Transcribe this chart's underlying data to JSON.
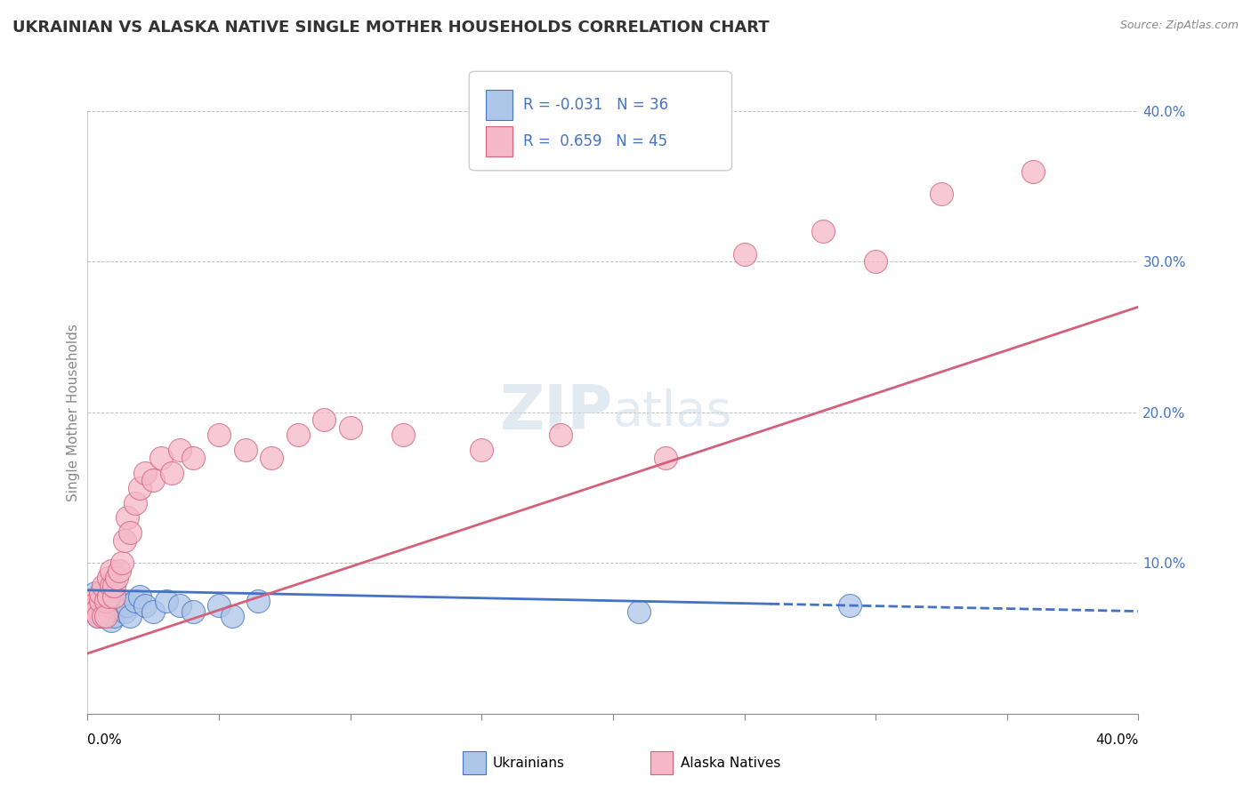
{
  "title": "UKRAINIAN VS ALASKA NATIVE SINGLE MOTHER HOUSEHOLDS CORRELATION CHART",
  "source": "Source: ZipAtlas.com",
  "ylabel": "Single Mother Households",
  "ukrainians_color": "#aec6e8",
  "alaska_color": "#f4b8c8",
  "trend_ukrainian_color": "#4472c4",
  "trend_alaska_color": "#d4607a",
  "watermark_zip": "ZIP",
  "watermark_atlas": "atlas",
  "xlim": [
    0.0,
    0.4
  ],
  "ylim": [
    0.0,
    0.4
  ],
  "ytick_vals": [
    0.0,
    0.1,
    0.2,
    0.3,
    0.4
  ],
  "ytick_labels": [
    "",
    "10.0%",
    "20.0%",
    "30.0%",
    "40.0%"
  ],
  "legend_r1": "R = -0.031",
  "legend_n1": "N = 36",
  "legend_r2": "R =  0.659",
  "legend_n2": "N = 45",
  "ukrainians_x": [
    0.001,
    0.002,
    0.003,
    0.004,
    0.004,
    0.005,
    0.005,
    0.006,
    0.006,
    0.006,
    0.007,
    0.007,
    0.008,
    0.008,
    0.009,
    0.009,
    0.01,
    0.01,
    0.011,
    0.012,
    0.013,
    0.014,
    0.015,
    0.016,
    0.018,
    0.02,
    0.022,
    0.025,
    0.03,
    0.035,
    0.04,
    0.05,
    0.055,
    0.065,
    0.21,
    0.29
  ],
  "ukrainians_y": [
    0.075,
    0.072,
    0.08,
    0.065,
    0.07,
    0.078,
    0.068,
    0.07,
    0.065,
    0.075,
    0.08,
    0.065,
    0.072,
    0.068,
    0.075,
    0.062,
    0.078,
    0.065,
    0.07,
    0.072,
    0.075,
    0.068,
    0.072,
    0.065,
    0.075,
    0.078,
    0.072,
    0.068,
    0.075,
    0.072,
    0.068,
    0.072,
    0.065,
    0.075,
    0.068,
    0.072
  ],
  "alaska_x": [
    0.001,
    0.002,
    0.003,
    0.004,
    0.005,
    0.005,
    0.006,
    0.006,
    0.007,
    0.007,
    0.008,
    0.008,
    0.009,
    0.009,
    0.01,
    0.01,
    0.011,
    0.012,
    0.013,
    0.014,
    0.015,
    0.016,
    0.018,
    0.02,
    0.022,
    0.025,
    0.028,
    0.032,
    0.035,
    0.04,
    0.05,
    0.06,
    0.07,
    0.08,
    0.09,
    0.1,
    0.12,
    0.15,
    0.18,
    0.22,
    0.25,
    0.28,
    0.3,
    0.325,
    0.36
  ],
  "alaska_y": [
    0.075,
    0.072,
    0.068,
    0.065,
    0.075,
    0.08,
    0.065,
    0.085,
    0.075,
    0.065,
    0.078,
    0.09,
    0.085,
    0.095,
    0.078,
    0.085,
    0.09,
    0.095,
    0.1,
    0.115,
    0.13,
    0.12,
    0.14,
    0.15,
    0.16,
    0.155,
    0.17,
    0.16,
    0.175,
    0.17,
    0.185,
    0.175,
    0.17,
    0.185,
    0.195,
    0.19,
    0.185,
    0.175,
    0.185,
    0.17,
    0.305,
    0.32,
    0.3,
    0.345,
    0.36
  ],
  "trend_u_x0": 0.0,
  "trend_u_x1": 0.4,
  "trend_u_y0": 0.082,
  "trend_u_y1": 0.068,
  "trend_a_x0": 0.0,
  "trend_a_x1": 0.4,
  "trend_a_y0": 0.04,
  "trend_a_y1": 0.27
}
